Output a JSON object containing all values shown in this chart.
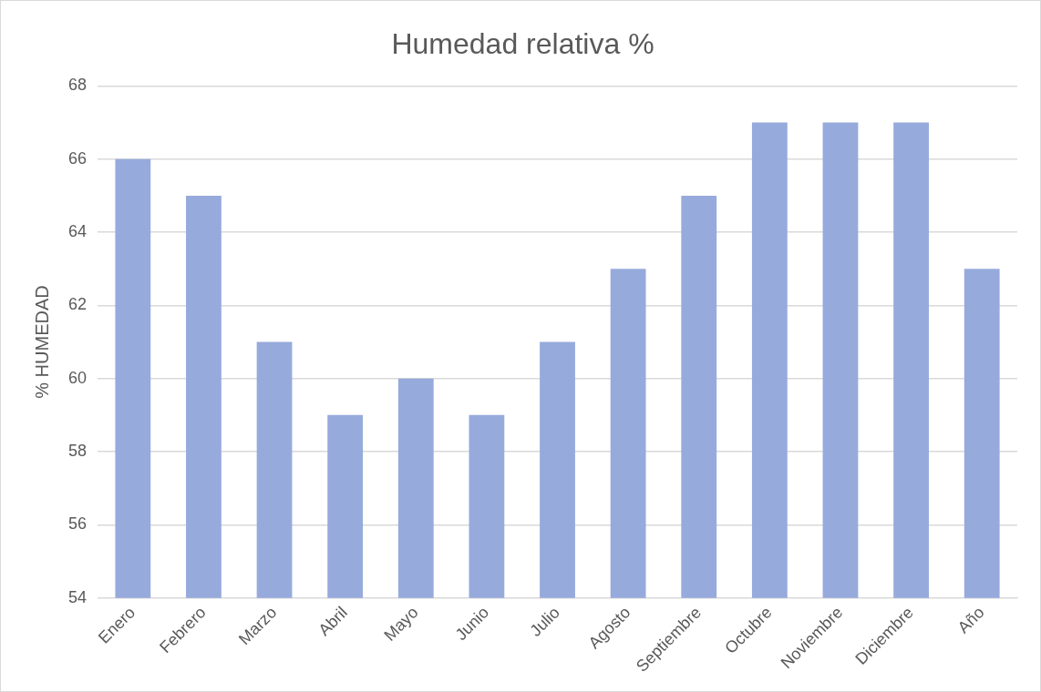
{
  "chart_data": {
    "type": "bar",
    "title": "Humedad relativa %",
    "ylabel": "% HUMEDAD",
    "categories": [
      "Enero",
      "Febrero",
      "Marzo",
      "Abril",
      "Mayo",
      "Junio",
      "Julio",
      "Agosto",
      "Septiembre",
      "Octubre",
      "Noviembre",
      "Diciembre",
      "Año"
    ],
    "values": [
      66,
      65,
      61,
      59,
      60,
      59,
      61,
      63,
      65,
      67,
      67,
      67,
      63
    ],
    "color": "#97aadc",
    "ylim": [
      54,
      68
    ],
    "yticks": [
      54,
      56,
      58,
      60,
      62,
      64,
      66,
      68
    ],
    "grid": "y",
    "legend": false
  }
}
